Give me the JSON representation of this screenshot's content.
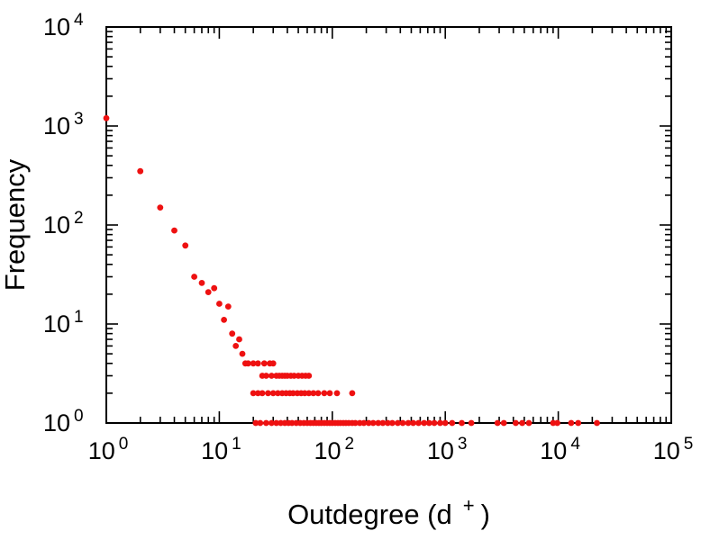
{
  "chart_data": {
    "type": "scatter",
    "title": "",
    "xlabel_base": "Outdegree (d",
    "xlabel_sup": "+",
    "xlabel_end": ")",
    "ylabel": "Frequency",
    "x_scale": "log",
    "y_scale": "log",
    "xlim": [
      1,
      100000
    ],
    "ylim": [
      1,
      10000
    ],
    "x_ticks_exponents": [
      0,
      1,
      2,
      3,
      4,
      5
    ],
    "y_ticks_exponents": [
      0,
      1,
      2,
      3,
      4
    ],
    "grid": false,
    "legend": false,
    "marker_color": "#ee1111",
    "axis_color": "#000000",
    "points": [
      [
        1,
        1200
      ],
      [
        2,
        350
      ],
      [
        3,
        150
      ],
      [
        4,
        88
      ],
      [
        5,
        62
      ],
      [
        6,
        30
      ],
      [
        7,
        26
      ],
      [
        8,
        21
      ],
      [
        9,
        23
      ],
      [
        10,
        16
      ],
      [
        11,
        11
      ],
      [
        12,
        15
      ],
      [
        13,
        8
      ],
      [
        14,
        6
      ],
      [
        15,
        7
      ],
      [
        16,
        5
      ],
      [
        17,
        4
      ],
      [
        18,
        4
      ],
      [
        20,
        4
      ],
      [
        22,
        4
      ],
      [
        25,
        4
      ],
      [
        28,
        4
      ],
      [
        30,
        4
      ],
      [
        24,
        3
      ],
      [
        26,
        3
      ],
      [
        29,
        3
      ],
      [
        32,
        3
      ],
      [
        34,
        3
      ],
      [
        36,
        3
      ],
      [
        38,
        3
      ],
      [
        40,
        3
      ],
      [
        43,
        3
      ],
      [
        46,
        3
      ],
      [
        50,
        3
      ],
      [
        54,
        3
      ],
      [
        58,
        3
      ],
      [
        62,
        3
      ],
      [
        20,
        2
      ],
      [
        22,
        2
      ],
      [
        24,
        2
      ],
      [
        27,
        2
      ],
      [
        30,
        2
      ],
      [
        33,
        2
      ],
      [
        36,
        2
      ],
      [
        39,
        2
      ],
      [
        42,
        2
      ],
      [
        45,
        2
      ],
      [
        49,
        2
      ],
      [
        53,
        2
      ],
      [
        57,
        2
      ],
      [
        62,
        2
      ],
      [
        68,
        2
      ],
      [
        75,
        2
      ],
      [
        85,
        2
      ],
      [
        95,
        2
      ],
      [
        110,
        2
      ],
      [
        150,
        2
      ],
      [
        21,
        1
      ],
      [
        23,
        1
      ],
      [
        26,
        1
      ],
      [
        29,
        1
      ],
      [
        32,
        1
      ],
      [
        35,
        1
      ],
      [
        38,
        1
      ],
      [
        41,
        1
      ],
      [
        44,
        1
      ],
      [
        48,
        1
      ],
      [
        52,
        1
      ],
      [
        56,
        1
      ],
      [
        60,
        1
      ],
      [
        64,
        1
      ],
      [
        68,
        1
      ],
      [
        72,
        1
      ],
      [
        76,
        1
      ],
      [
        80,
        1
      ],
      [
        85,
        1
      ],
      [
        90,
        1
      ],
      [
        95,
        1
      ],
      [
        100,
        1
      ],
      [
        106,
        1
      ],
      [
        112,
        1
      ],
      [
        118,
        1
      ],
      [
        125,
        1
      ],
      [
        132,
        1
      ],
      [
        140,
        1
      ],
      [
        150,
        1
      ],
      [
        160,
        1
      ],
      [
        175,
        1
      ],
      [
        190,
        1
      ],
      [
        210,
        1
      ],
      [
        230,
        1
      ],
      [
        255,
        1
      ],
      [
        280,
        1
      ],
      [
        310,
        1
      ],
      [
        340,
        1
      ],
      [
        380,
        1
      ],
      [
        420,
        1
      ],
      [
        470,
        1
      ],
      [
        520,
        1
      ],
      [
        580,
        1
      ],
      [
        650,
        1
      ],
      [
        720,
        1
      ],
      [
        800,
        1
      ],
      [
        900,
        1
      ],
      [
        1000,
        1
      ],
      [
        1150,
        1
      ],
      [
        1400,
        1
      ],
      [
        1700,
        1
      ],
      [
        2900,
        1
      ],
      [
        3300,
        1
      ],
      [
        4200,
        1
      ],
      [
        4800,
        1
      ],
      [
        5500,
        1
      ],
      [
        9000,
        1
      ],
      [
        9800,
        1
      ],
      [
        13000,
        1
      ],
      [
        15000,
        1
      ],
      [
        22000,
        1
      ]
    ]
  }
}
